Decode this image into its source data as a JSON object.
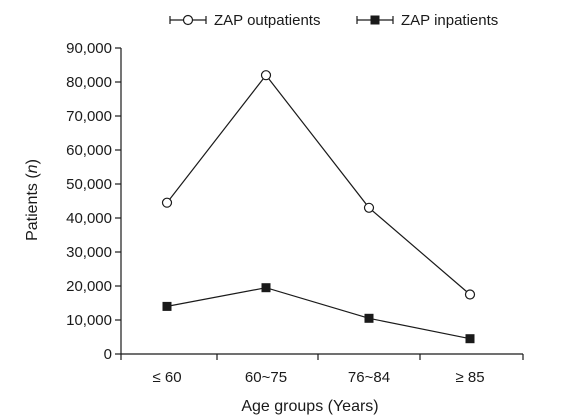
{
  "chart_data": {
    "type": "line",
    "title": "",
    "xlabel": "Age groups (Years)",
    "ylabel_text": "Patients (",
    "ylabel_italic": "n",
    "ylabel_close": ")",
    "categories": [
      "≤ 60",
      "60~75",
      "76~84",
      "≥ 85"
    ],
    "ylim": [
      0,
      90000
    ],
    "yticks": [
      0,
      10000,
      20000,
      30000,
      40000,
      50000,
      60000,
      70000,
      80000,
      90000
    ],
    "ytick_labels": [
      "0",
      "10,000",
      "20,000",
      "30,000",
      "40,000",
      "50,000",
      "60,000",
      "70,000",
      "80,000",
      "90,000"
    ],
    "grid": false,
    "legend_position": "top",
    "series": [
      {
        "name": "ZAP outpatients",
        "marker": "open-circle",
        "color": "#1a1a1a",
        "values": [
          44500,
          82000,
          43000,
          17500
        ]
      },
      {
        "name": "ZAP inpatients",
        "marker": "filled-square",
        "color": "#1a1a1a",
        "values": [
          14000,
          19500,
          10500,
          4500
        ]
      }
    ]
  }
}
